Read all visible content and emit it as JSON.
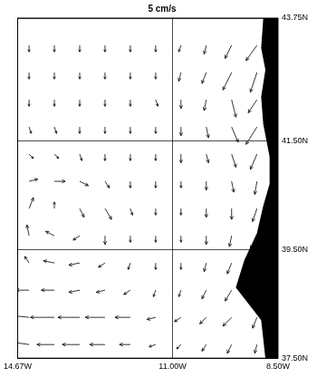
{
  "chart_data": {
    "type": "quiver",
    "title": "5 cm/s",
    "color": "#000000",
    "xlim": [
      -14.67,
      -8.5
    ],
    "xticks": [
      {
        "value": -14.67,
        "label": "14.67W"
      },
      {
        "value": -11.0,
        "label": "11.00W"
      },
      {
        "value": -8.5,
        "label": "8.50W"
      }
    ],
    "ylim": [
      37.5,
      43.75
    ],
    "yticks": [
      {
        "value": 37.5,
        "label": "37.50N"
      },
      {
        "value": 39.5,
        "label": "39.50N"
      },
      {
        "value": 41.5,
        "label": "41.50N"
      },
      {
        "value": 43.75,
        "label": "43.75N"
      }
    ],
    "grid": true,
    "lon": [
      -14.4,
      -13.8,
      -13.2,
      -12.6,
      -12.0,
      -11.4,
      -10.8,
      -10.2,
      -9.6,
      -9.0
    ],
    "rows": [
      {
        "lat": 43.25,
        "u": [
          0,
          0,
          0,
          0,
          0,
          0,
          -1,
          -1,
          -3,
          -5
        ],
        "v": [
          -3,
          -3,
          -3,
          -3,
          -3,
          -3,
          -3,
          -4,
          -6,
          -7
        ]
      },
      {
        "lat": 42.75,
        "u": [
          0,
          0,
          0,
          0,
          0,
          0,
          -1,
          -2,
          -4,
          -3
        ],
        "v": [
          -3,
          -3,
          -3,
          -3,
          -3,
          -3,
          -4,
          -5,
          -8,
          -9
        ]
      },
      {
        "lat": 42.25,
        "u": [
          0,
          0,
          0,
          0,
          0,
          1,
          0,
          -1,
          2,
          -4
        ],
        "v": [
          -3,
          -3,
          -3,
          -3,
          -3,
          -3,
          -4,
          -5,
          -8,
          -6
        ]
      },
      {
        "lat": 41.75,
        "u": [
          1,
          1,
          0,
          0,
          0,
          0,
          0,
          1,
          3,
          -5
        ],
        "v": [
          -3,
          -3,
          -3,
          -3,
          -3,
          -3,
          -4,
          -5,
          -7,
          -8
        ]
      },
      {
        "lat": 41.25,
        "u": [
          2,
          2,
          1,
          0,
          0,
          0,
          0,
          1,
          2,
          -3
        ],
        "v": [
          -2,
          -2,
          -3,
          -3,
          -3,
          -3,
          -4,
          -4,
          -6,
          -7
        ]
      },
      {
        "lat": 40.75,
        "u": [
          4,
          5,
          4,
          2,
          0,
          0,
          0,
          0,
          1,
          -1
        ],
        "v": [
          1,
          0,
          -2,
          -3,
          -3,
          -3,
          -3,
          -4,
          -5,
          -6
        ]
      },
      {
        "lat": 40.25,
        "u": [
          2,
          0,
          2,
          3,
          1,
          0,
          0,
          0,
          0,
          -2
        ],
        "v": [
          5,
          3,
          -4,
          -5,
          -3,
          -3,
          -3,
          -4,
          -5,
          -6
        ]
      },
      {
        "lat": 39.75,
        "u": [
          -1,
          -4,
          -3,
          0,
          0,
          0,
          0,
          0,
          -1,
          -3
        ],
        "v": [
          5,
          2,
          -2,
          -4,
          -3,
          -3,
          -3,
          -4,
          -5,
          -6
        ]
      },
      {
        "lat": 39.25,
        "u": [
          -2,
          -5,
          -5,
          -3,
          -1,
          0,
          0,
          -1,
          -2,
          null
        ],
        "v": [
          3,
          1,
          -1,
          -2,
          -3,
          -3,
          -3,
          -4,
          -5,
          null
        ]
      },
      {
        "lat": 38.75,
        "u": [
          -6,
          -6,
          -5,
          -4,
          -3,
          -1,
          -1,
          -2,
          -3,
          null
        ],
        "v": [
          0,
          0,
          -1,
          -1,
          -2,
          -3,
          -3,
          -4,
          -5,
          null
        ]
      },
      {
        "lat": 38.25,
        "u": [
          -10,
          -11,
          -10,
          -9,
          -7,
          -4,
          -3,
          -3,
          -4,
          -2
        ],
        "v": [
          1,
          0,
          0,
          0,
          0,
          -1,
          -2,
          -3,
          -4,
          -5
        ]
      },
      {
        "lat": 37.75,
        "u": [
          -7,
          -8,
          -8,
          -7,
          -5,
          -3,
          -2,
          -2,
          -2,
          -1
        ],
        "v": [
          1,
          0,
          0,
          0,
          0,
          -1,
          -2,
          -3,
          -4,
          -4
        ]
      }
    ],
    "land": [
      [
        -8.85,
        43.75
      ],
      [
        -8.9,
        43.2
      ],
      [
        -8.8,
        42.8
      ],
      [
        -8.9,
        42.3
      ],
      [
        -8.85,
        41.8
      ],
      [
        -8.7,
        41.2
      ],
      [
        -8.7,
        40.7
      ],
      [
        -8.85,
        40.3
      ],
      [
        -9.0,
        39.8
      ],
      [
        -9.3,
        39.3
      ],
      [
        -9.5,
        38.8
      ],
      [
        -9.2,
        38.5
      ],
      [
        -8.9,
        38.2
      ],
      [
        -8.8,
        37.5
      ],
      [
        -8.5,
        37.5
      ],
      [
        -8.5,
        43.75
      ]
    ]
  }
}
